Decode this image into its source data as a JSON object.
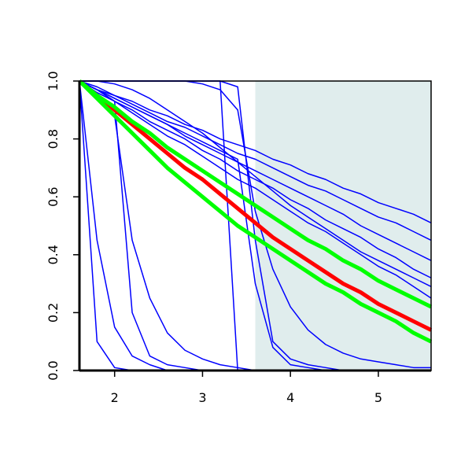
{
  "chart_data": {
    "type": "line",
    "x": [
      1.6,
      1.8,
      2.0,
      2.2,
      2.4,
      2.6,
      2.8,
      3.0,
      3.2,
      3.4,
      3.6,
      3.8,
      4.0,
      4.2,
      4.4,
      4.6,
      4.8,
      5.0,
      5.2,
      5.4,
      5.6
    ],
    "xlim": [
      1.6,
      5.6
    ],
    "xticks": [
      2,
      3,
      4,
      5
    ],
    "ylim": [
      0,
      1
    ],
    "yticks": [
      {
        "value": 0,
        "label": "0.0"
      },
      0.2,
      0.4,
      0.6,
      0.8,
      {
        "value": 1,
        "label": "1.0"
      }
    ],
    "shaded_region": {
      "xlim": [
        3.6,
        5.6
      ],
      "color": "#e0eded"
    },
    "series": [
      {
        "color": "#0000ff",
        "values": [
          1.0,
          0.98,
          0.95,
          0.93,
          0.9,
          0.88,
          0.85,
          0.83,
          0.8,
          0.78,
          0.76,
          0.73,
          0.71,
          0.68,
          0.66,
          0.63,
          0.61,
          0.58,
          0.56,
          0.54,
          0.51
        ]
      },
      {
        "color": "#0000ff",
        "values": [
          1.0,
          0.97,
          0.95,
          0.92,
          0.89,
          0.86,
          0.84,
          0.81,
          0.78,
          0.75,
          0.73,
          0.7,
          0.67,
          0.64,
          0.62,
          0.59,
          0.56,
          0.53,
          0.51,
          0.48,
          0.45
        ]
      },
      {
        "color": "#0000ff",
        "values": [
          1.0,
          0.97,
          0.94,
          0.91,
          0.88,
          0.85,
          0.81,
          0.78,
          0.75,
          0.72,
          0.69,
          0.66,
          0.63,
          0.6,
          0.57,
          0.54,
          0.5,
          0.47,
          0.44,
          0.41,
          0.38
        ]
      },
      {
        "color": "#0000ff",
        "values": [
          1.0,
          0.97,
          0.93,
          0.9,
          0.86,
          0.83,
          0.8,
          0.76,
          0.73,
          0.69,
          0.66,
          0.63,
          0.59,
          0.56,
          0.52,
          0.49,
          0.46,
          0.42,
          0.39,
          0.35,
          0.32
        ]
      },
      {
        "color": "#0000ff",
        "values": [
          1.0,
          0.96,
          0.93,
          0.89,
          0.85,
          0.81,
          0.78,
          0.74,
          0.7,
          0.66,
          0.63,
          0.59,
          0.55,
          0.51,
          0.48,
          0.44,
          0.4,
          0.36,
          0.33,
          0.29,
          0.25
        ]
      },
      {
        "color": "#0000ff",
        "values": [
          1.0,
          1.0,
          0.99,
          0.97,
          0.94,
          0.9,
          0.86,
          0.82,
          0.77,
          0.72,
          0.67,
          0.62,
          0.57,
          0.53,
          0.49,
          0.45,
          0.41,
          0.38,
          0.35,
          0.32,
          0.29
        ]
      },
      {
        "color": "#0000ff",
        "values": [
          1.0,
          0.97,
          0.94,
          0.91,
          0.88,
          0.85,
          0.82,
          0.79,
          0.76,
          0.73,
          0.3,
          0.08,
          0.02,
          0.01,
          0,
          0,
          0,
          0,
          0,
          0,
          0
        ]
      },
      {
        "color": "#0000ff",
        "values": [
          1,
          1,
          1,
          1,
          1,
          1,
          1,
          1,
          1,
          0.98,
          0.45,
          0.1,
          0.04,
          0.02,
          0.01,
          0,
          0,
          0,
          0,
          0,
          0
        ]
      },
      {
        "color": "#0000ff",
        "values": [
          1,
          1,
          1,
          1,
          1,
          1,
          1,
          1,
          1,
          0,
          0,
          0,
          0,
          0,
          0,
          0,
          0,
          0,
          0,
          0,
          0
        ]
      },
      {
        "color": "#0000ff",
        "values": [
          1,
          1,
          1,
          1,
          1,
          1,
          1,
          0.99,
          0.97,
          0.9,
          0.55,
          0.35,
          0.22,
          0.14,
          0.09,
          0.06,
          0.04,
          0.03,
          0.02,
          0.01,
          0.01
        ]
      },
      {
        "color": "#0000ff",
        "values": [
          1.0,
          0.97,
          0.93,
          0.2,
          0.05,
          0.02,
          0.01,
          0,
          0,
          0,
          0,
          0,
          0,
          0,
          0,
          0,
          0,
          0,
          0,
          0,
          0
        ]
      },
      {
        "color": "#0000ff",
        "values": [
          1.0,
          0.95,
          0.88,
          0.45,
          0.25,
          0.13,
          0.07,
          0.04,
          0.02,
          0.01,
          0,
          0,
          0,
          0,
          0,
          0,
          0,
          0,
          0,
          0,
          0
        ]
      },
      {
        "color": "#0000ff",
        "values": [
          1.0,
          0.1,
          0.01,
          0,
          0,
          0,
          0,
          0,
          0,
          0,
          0,
          0,
          0,
          0,
          0,
          0,
          0,
          0,
          0,
          0,
          0
        ]
      },
      {
        "color": "#0000ff",
        "values": [
          1.0,
          0.45,
          0.15,
          0.05,
          0.02,
          0,
          0,
          0,
          0,
          0,
          0,
          0,
          0,
          0,
          0,
          0,
          0,
          0,
          0,
          0,
          0
        ]
      },
      {
        "color": "#ff0000",
        "width": 5,
        "values": [
          1.0,
          0.95,
          0.9,
          0.85,
          0.8,
          0.75,
          0.7,
          0.66,
          0.61,
          0.56,
          0.51,
          0.46,
          0.42,
          0.38,
          0.34,
          0.3,
          0.27,
          0.23,
          0.2,
          0.17,
          0.14
        ]
      },
      {
        "color": "#00ff00",
        "width": 5,
        "values": [
          1.0,
          0.95,
          0.91,
          0.86,
          0.82,
          0.77,
          0.73,
          0.69,
          0.65,
          0.61,
          0.57,
          0.53,
          0.49,
          0.45,
          0.42,
          0.38,
          0.35,
          0.31,
          0.28,
          0.25,
          0.22
        ]
      },
      {
        "color": "#00ff00",
        "width": 5,
        "values": [
          1.0,
          0.94,
          0.88,
          0.82,
          0.76,
          0.7,
          0.65,
          0.6,
          0.55,
          0.5,
          0.46,
          0.42,
          0.38,
          0.34,
          0.3,
          0.27,
          0.23,
          0.2,
          0.17,
          0.13,
          0.1
        ]
      }
    ]
  }
}
